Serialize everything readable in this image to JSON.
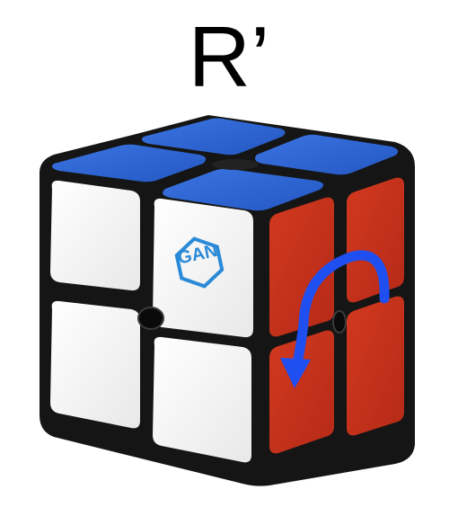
{
  "move_notation": "R’",
  "cube": {
    "brand_logo_text": "GAN",
    "colors": {
      "body": "#141414",
      "top_face": "#2f67d8",
      "front_face": "#f4f4f4",
      "right_face": "#c8321f",
      "arrow": "#1f4ff0",
      "logo": "#2a8ad8"
    },
    "arrow_icon": "counterclockwise-arrow-icon"
  }
}
